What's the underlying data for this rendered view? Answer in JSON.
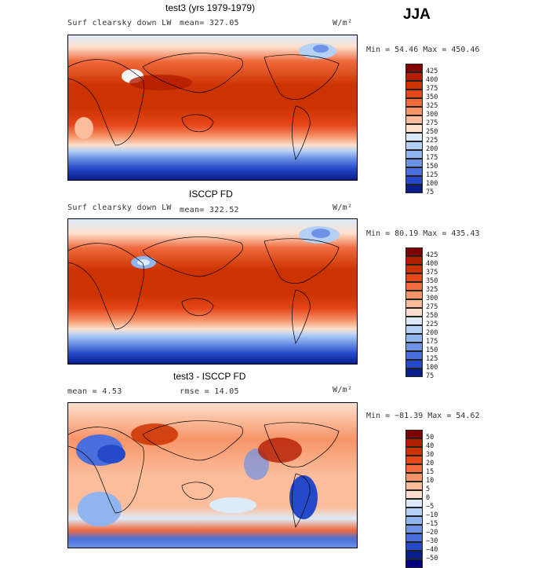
{
  "season": "JJA",
  "panels": [
    {
      "title": "test3 (yrs 1979-1979)",
      "variable": "Surf clearsky down LW",
      "stat_left": "mean= 327.05",
      "units": "W/m²",
      "minmax": "Min =  54.46 Max = 450.46",
      "colorbar": [
        "425",
        "400",
        "375",
        "350",
        "325",
        "300",
        "275",
        "250",
        "225",
        "200",
        "175",
        "150",
        "125",
        "100",
        "75"
      ],
      "colors": [
        "#7f0000",
        "#b31d00",
        "#cc3300",
        "#e5461a",
        "#f06a3c",
        "#f79468",
        "#fbbd9b",
        "#fde0cd",
        "#dcebfa",
        "#b4d0f5",
        "#8fb4ee",
        "#6d92e6",
        "#4a6fdc",
        "#2549c8",
        "#0a1e8a"
      ]
    },
    {
      "title": "ISCCP FD",
      "variable": "Surf clearsky down LW",
      "stat_left": "mean= 322.52",
      "units": "W/m²",
      "minmax": "Min =  80.19 Max = 435.43",
      "colorbar": [
        "425",
        "400",
        "375",
        "350",
        "325",
        "300",
        "275",
        "250",
        "225",
        "200",
        "175",
        "150",
        "125",
        "100",
        "75"
      ],
      "colors": [
        "#7f0000",
        "#b31d00",
        "#cc3300",
        "#e5461a",
        "#f06a3c",
        "#f79468",
        "#fbbd9b",
        "#fde0cd",
        "#dcebfa",
        "#b4d0f5",
        "#8fb4ee",
        "#6d92e6",
        "#4a6fdc",
        "#2549c8",
        "#0a1e8a"
      ]
    },
    {
      "title": "test3 - ISCCP FD",
      "stat_left": "mean =   4.53",
      "stat_mid": "rmse =  14.05",
      "units": "W/m²",
      "minmax": "Min = −81.39 Max =  54.62",
      "colorbar": [
        "50",
        "40",
        "30",
        "20",
        "15",
        "10",
        "5",
        "0",
        "−5",
        "−10",
        "−15",
        "−20",
        "−30",
        "−40",
        "−50"
      ],
      "colors": [
        "#7f0000",
        "#b31d00",
        "#cc3300",
        "#e5461a",
        "#f06a3c",
        "#f79468",
        "#fbbd9b",
        "#fde0cd",
        "#dcebfa",
        "#b4d0f5",
        "#8fb4ee",
        "#6d92e6",
        "#4a6fdc",
        "#2549c8",
        "#0a1e8a",
        "#000080"
      ]
    }
  ]
}
